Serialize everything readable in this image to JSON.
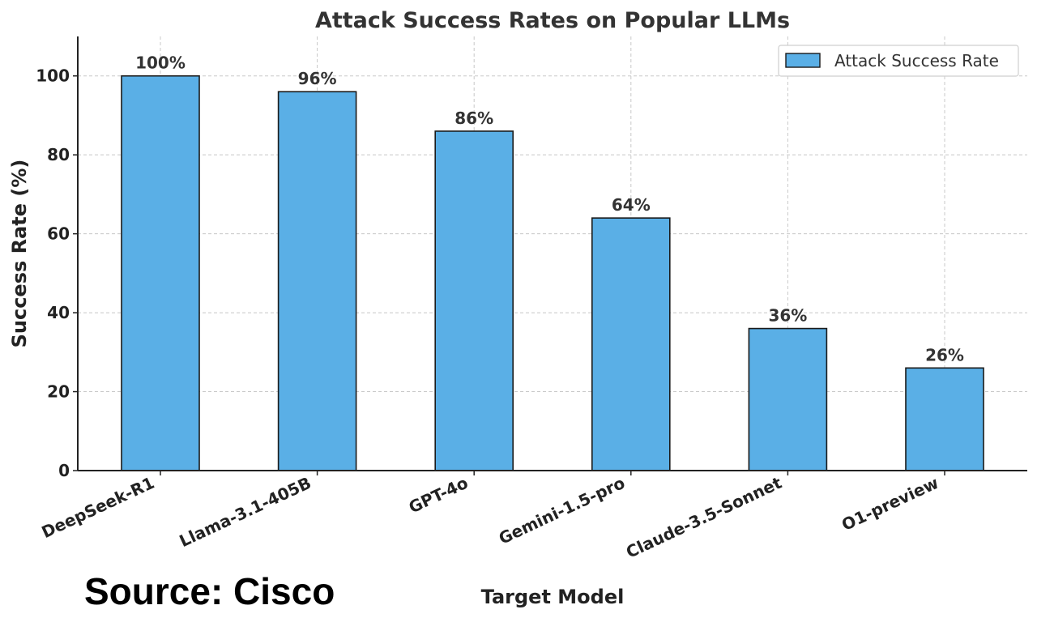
{
  "chart_data": {
    "type": "bar",
    "title": "Attack Success Rates on Popular LLMs",
    "xlabel": "Target Model",
    "ylabel": "Success Rate (%)",
    "categories": [
      "DeepSeek-R1",
      "Llama-3.1-405B",
      "GPT-4o",
      "Gemini-1.5-pro",
      "Claude-3.5-Sonnet",
      "O1-preview"
    ],
    "series": [
      {
        "name": "Attack Success Rate",
        "values": [
          100,
          96,
          86,
          64,
          36,
          26
        ],
        "labels": [
          "100%",
          "96%",
          "86%",
          "64%",
          "36%",
          "26%"
        ]
      }
    ],
    "ylim": [
      0,
      110
    ],
    "yticks": [
      0,
      20,
      40,
      60,
      80,
      100
    ],
    "grid": true,
    "legend_position": "top-right",
    "colors": {
      "bar_fill": "#5aafe6",
      "bar_edge": "#1a1a1a",
      "grid": "#c8c8c8"
    }
  },
  "annotation": {
    "source": "Source: Cisco"
  }
}
